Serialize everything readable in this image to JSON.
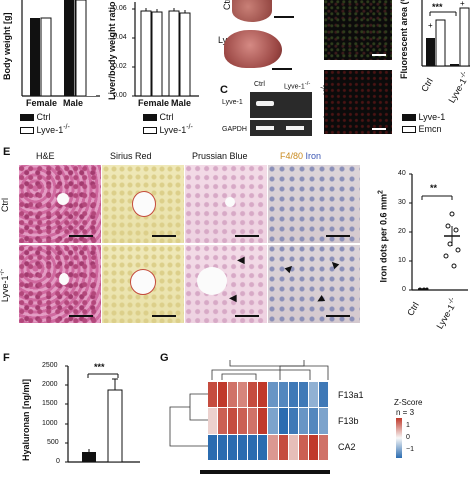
{
  "panels": {
    "A": {
      "ylabel": "Body weight [g]",
      "categories": [
        "Female",
        "Male"
      ],
      "legend": [
        "Ctrl",
        "Lyve-1"
      ],
      "legend_sup": "-/-"
    },
    "B": {
      "ylabel": "Liver/body weight ratio",
      "categories": [
        "Female",
        "Male"
      ],
      "yticks": [
        "0.06",
        "0.04",
        "0.02",
        "0.00"
      ],
      "legend": [
        "Ctrl",
        "Lyve-1"
      ],
      "legend_sup": "-/-"
    },
    "C": {
      "letter": "C",
      "lane_labels": [
        "Lyve-1",
        "Ctrl"
      ],
      "lane_label_sup": "-/-",
      "rows": [
        "Lyve-1",
        "GAPDH"
      ],
      "liver_labels": [
        "Ctrl",
        "Lyve-1"
      ],
      "liver_label_sup": "-/-"
    },
    "D": {
      "ylabel": "Fluorescent area (%)",
      "sig": "***",
      "xlabels": [
        "Ctrl",
        "Lyve-1"
      ],
      "xlabel_sup": "-/-",
      "legend": [
        "Lyve-1",
        "Emcn"
      ]
    },
    "E": {
      "letter": "E",
      "columns": [
        "H&E",
        "Sirius Red",
        "Prussian Blue"
      ],
      "f480_label": "F4/80",
      "iron_label": "Iron",
      "rows": [
        "Ctrl",
        "Lyve-1"
      ],
      "row_sup": "-/-",
      "quant": {
        "ylabel": "Iron dots per 0.6 mm",
        "ylabel_sup": "2",
        "sig": "**",
        "yticks": [
          "40",
          "30",
          "20",
          "10",
          "0"
        ],
        "xlabels": [
          "Ctrl",
          "Lyve-1"
        ],
        "xlabel_sup": "-/-"
      }
    },
    "F": {
      "letter": "F",
      "ylabel": "Hyaluronan [ng/ml]",
      "sig": "***",
      "yticks": [
        "2500",
        "2000",
        "1500",
        "1000",
        "500",
        "0"
      ]
    },
    "G": {
      "letter": "G",
      "genes": [
        "F13a1",
        "F13b",
        "CA2"
      ],
      "scale_title": "Z-Score",
      "scale_n": "n = 3",
      "scale_ticks": [
        "1",
        "0",
        "−1"
      ]
    }
  },
  "chart_data": [
    {
      "type": "bar",
      "panel": "B",
      "categories": [
        "Female",
        "Male"
      ],
      "series": [
        {
          "name": "Ctrl",
          "values": [
            0.046,
            0.046
          ]
        },
        {
          "name": "Lyve-1-/-",
          "values": [
            0.047,
            0.045
          ]
        }
      ],
      "ylim": [
        0,
        0.06
      ]
    },
    {
      "type": "bar",
      "panel": "A",
      "categories": [
        "Female",
        "Male"
      ],
      "series": [
        {
          "name": "Ctrl",
          "values": [
            21,
            30
          ]
        },
        {
          "name": "Lyve-1-/-",
          "values": [
            21,
            30
          ]
        }
      ]
    },
    {
      "type": "bar",
      "panel": "D",
      "categories": [
        "Ctrl",
        "Lyve-1-/-"
      ],
      "series": [
        {
          "name": "Lyve-1",
          "values": [
            3.0,
            0.1
          ]
        },
        {
          "name": "Emcn",
          "values": [
            3.6,
            4.3
          ]
        }
      ]
    },
    {
      "type": "scatter",
      "panel": "E",
      "categories": [
        "Ctrl",
        "Lyve-1-/-"
      ],
      "points": {
        "Ctrl": [
          0.2,
          0.4,
          0.3,
          0.5,
          0.2,
          0.3
        ],
        "Lyve-1-/-": [
          8,
          12,
          15,
          18,
          22,
          26,
          33
        ]
      },
      "means": [
        0.3,
        18.5
      ],
      "ylim": [
        0,
        40
      ]
    },
    {
      "type": "bar",
      "panel": "F",
      "categories": [
        "Ctrl",
        "Lyve-1-/-"
      ],
      "values": [
        250,
        1870
      ],
      "errors": [
        60,
        280
      ],
      "ylim": [
        0,
        2500
      ]
    },
    {
      "type": "heatmap",
      "panel": "G",
      "rows": [
        "F13a1",
        "F13b",
        "CA2"
      ],
      "columns": 12,
      "values": [
        [
          0.9,
          1.0,
          0.7,
          0.6,
          0.9,
          1.1,
          -0.7,
          -0.8,
          -0.9,
          -0.9,
          -0.5,
          -0.9
        ],
        [
          0.2,
          0.8,
          0.9,
          0.8,
          0.7,
          1.0,
          -0.6,
          -1.0,
          -0.9,
          -0.7,
          -0.8,
          -0.6
        ],
        [
          -1.2,
          -1.3,
          -1.2,
          -1.1,
          -1.2,
          -1.3,
          0.5,
          0.9,
          0.3,
          0.8,
          1.1,
          0.7
        ]
      ],
      "zlim": [
        -1,
        1
      ]
    }
  ]
}
